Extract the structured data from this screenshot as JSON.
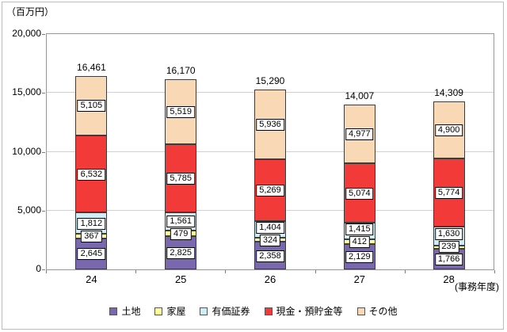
{
  "chart_data": {
    "type": "bar",
    "stacked": true,
    "unit_label": "（百万円）",
    "xaxis_label": "(事務年度)",
    "categories": [
      "24",
      "25",
      "26",
      "27",
      "28"
    ],
    "series": [
      {
        "name": "土地",
        "color": "#7a68ae",
        "values": [
          2645,
          2825,
          2358,
          2129,
          1766
        ]
      },
      {
        "name": "家屋",
        "color": "#ffff9c",
        "values": [
          367,
          479,
          324,
          412,
          239
        ]
      },
      {
        "name": "有価証券",
        "color": "#cdeef6",
        "values": [
          1812,
          1561,
          1404,
          1415,
          1630
        ]
      },
      {
        "name": "現金・預貯金等",
        "color": "#f23b38",
        "values": [
          6532,
          5785,
          5269,
          5074,
          5774
        ]
      },
      {
        "name": "その他",
        "color": "#f9d9b5",
        "values": [
          5105,
          5519,
          5936,
          4977,
          4900
        ]
      }
    ],
    "totals": [
      16461,
      16170,
      15290,
      14007,
      14309
    ],
    "ylim": [
      0,
      20000
    ],
    "ytick_step": 5000,
    "yticks": [
      "0",
      "5,000",
      "10,000",
      "15,000",
      "20,000"
    ],
    "grid": true,
    "legend_position": "bottom"
  }
}
